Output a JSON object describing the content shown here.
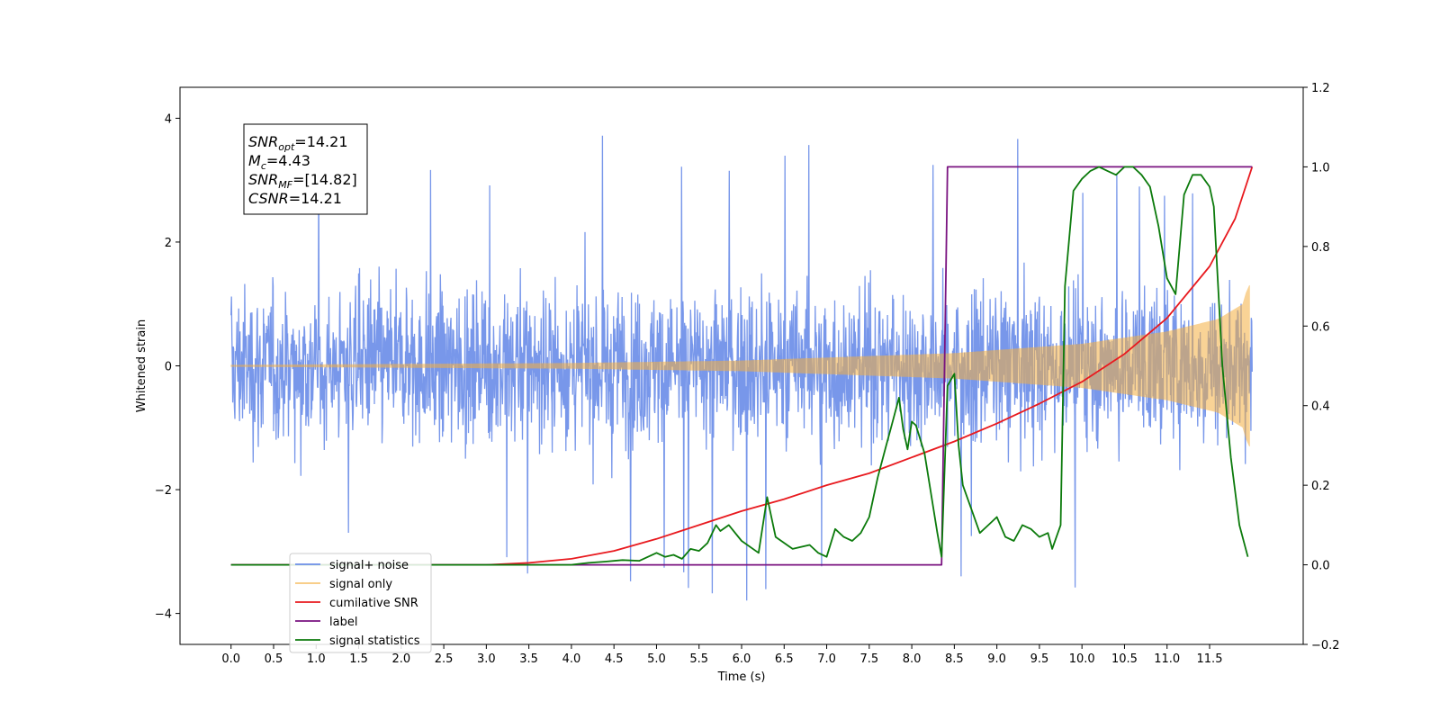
{
  "chart_data": {
    "type": "line",
    "xlabel": "Time (s)",
    "ylabel": "Whitened strain",
    "xlim": [
      -0.6,
      12.6
    ],
    "ylim": [
      -4.5,
      4.5
    ],
    "ylim_right": [
      -0.2,
      1.2
    ],
    "x_ticks": [
      "0.0",
      "0.5",
      "1.0",
      "1.5",
      "2.0",
      "2.5",
      "3.0",
      "3.5",
      "4.0",
      "4.5",
      "5.0",
      "5.5",
      "6.0",
      "6.5",
      "7.0",
      "7.5",
      "8.0",
      "8.5",
      "9.0",
      "9.5",
      "10.0",
      "10.5",
      "11.0",
      "11.5"
    ],
    "y_ticks": [
      "−4",
      "−2",
      "0",
      "2",
      "4"
    ],
    "y_ticks_right": [
      "−0.2",
      "0.0",
      "0.2",
      "0.4",
      "0.6",
      "0.8",
      "1.0",
      "1.2"
    ],
    "grid": false,
    "legend_position": "lower-left",
    "annotation": {
      "lines": [
        {
          "base": "SNR",
          "sub": "opt",
          "rest": "=14.21"
        },
        {
          "base": "M",
          "sub": "c",
          "rest": "=4.43"
        },
        {
          "base": "SNR",
          "sub": "MF",
          "rest": "=[14.82]"
        },
        {
          "base": "CSNR",
          "sub": "",
          "rest": "=14.21"
        }
      ]
    },
    "series": [
      {
        "name": "signal+ noise",
        "color": "#6d8ee8",
        "axis": "left",
        "kind": "noise",
        "x_range": [
          0.0,
          12.0
        ],
        "envelope_typical": 1.4,
        "envelope_max": 4.1
      },
      {
        "name": "signal only",
        "color": "#f5b041",
        "axis": "left",
        "kind": "chirp",
        "x_range": [
          0.0,
          12.0
        ],
        "envelope": {
          "x": [
            0.0,
            4.0,
            6.0,
            8.5,
            10.0,
            11.0,
            11.6,
            11.9,
            11.95
          ],
          "amp": [
            0.01,
            0.04,
            0.08,
            0.2,
            0.35,
            0.55,
            0.75,
            1.0,
            1.3
          ]
        }
      },
      {
        "name": "cumilative SNR",
        "color": "#e8191e",
        "axis": "right",
        "x": [
          0.0,
          3.0,
          3.5,
          4.0,
          4.5,
          5.0,
          5.5,
          6.0,
          6.5,
          7.0,
          7.5,
          8.0,
          8.5,
          9.0,
          9.5,
          10.0,
          10.5,
          11.0,
          11.5,
          11.8,
          12.0
        ],
        "y": [
          0.0,
          0.0,
          0.005,
          0.015,
          0.035,
          0.065,
          0.1,
          0.135,
          0.165,
          0.2,
          0.23,
          0.27,
          0.31,
          0.355,
          0.405,
          0.46,
          0.53,
          0.62,
          0.75,
          0.87,
          1.0
        ]
      },
      {
        "name": "label",
        "color": "#7a1380",
        "axis": "right",
        "x": [
          0.0,
          8.35,
          8.42,
          12.0
        ],
        "y": [
          0.0,
          0.0,
          1.0,
          1.0
        ]
      },
      {
        "name": "signal statistics",
        "color": "#0b7a0b",
        "axis": "right",
        "x": [
          0.0,
          4.0,
          4.2,
          4.4,
          4.6,
          4.8,
          5.0,
          5.1,
          5.2,
          5.3,
          5.4,
          5.5,
          5.6,
          5.7,
          5.75,
          5.85,
          6.0,
          6.2,
          6.3,
          6.4,
          6.6,
          6.8,
          6.9,
          7.0,
          7.1,
          7.2,
          7.3,
          7.4,
          7.5,
          7.6,
          7.7,
          7.75,
          7.85,
          7.9,
          7.95,
          8.0,
          8.05,
          8.15,
          8.3,
          8.35,
          8.42,
          8.5,
          8.55,
          8.6,
          8.7,
          8.8,
          8.9,
          9.0,
          9.1,
          9.2,
          9.3,
          9.4,
          9.5,
          9.6,
          9.65,
          9.75,
          9.8,
          9.9,
          10.0,
          10.1,
          10.2,
          10.3,
          10.4,
          10.5,
          10.6,
          10.7,
          10.8,
          10.9,
          11.0,
          11.1,
          11.2,
          11.3,
          11.4,
          11.5,
          11.55,
          11.65,
          11.75,
          11.85,
          11.95
        ],
        "y": [
          0.0,
          0.0,
          0.005,
          0.008,
          0.012,
          0.01,
          0.03,
          0.02,
          0.025,
          0.015,
          0.04,
          0.035,
          0.055,
          0.1,
          0.085,
          0.1,
          0.06,
          0.03,
          0.17,
          0.07,
          0.04,
          0.05,
          0.03,
          0.02,
          0.09,
          0.07,
          0.06,
          0.08,
          0.12,
          0.22,
          0.3,
          0.34,
          0.42,
          0.34,
          0.29,
          0.36,
          0.35,
          0.28,
          0.08,
          0.02,
          0.45,
          0.48,
          0.3,
          0.2,
          0.14,
          0.08,
          0.1,
          0.12,
          0.07,
          0.06,
          0.1,
          0.09,
          0.07,
          0.08,
          0.04,
          0.1,
          0.7,
          0.94,
          0.97,
          0.99,
          1.0,
          0.99,
          0.98,
          1.0,
          1.0,
          0.98,
          0.95,
          0.85,
          0.72,
          0.68,
          0.93,
          0.98,
          0.98,
          0.95,
          0.9,
          0.5,
          0.27,
          0.1,
          0.02
        ]
      }
    ]
  }
}
